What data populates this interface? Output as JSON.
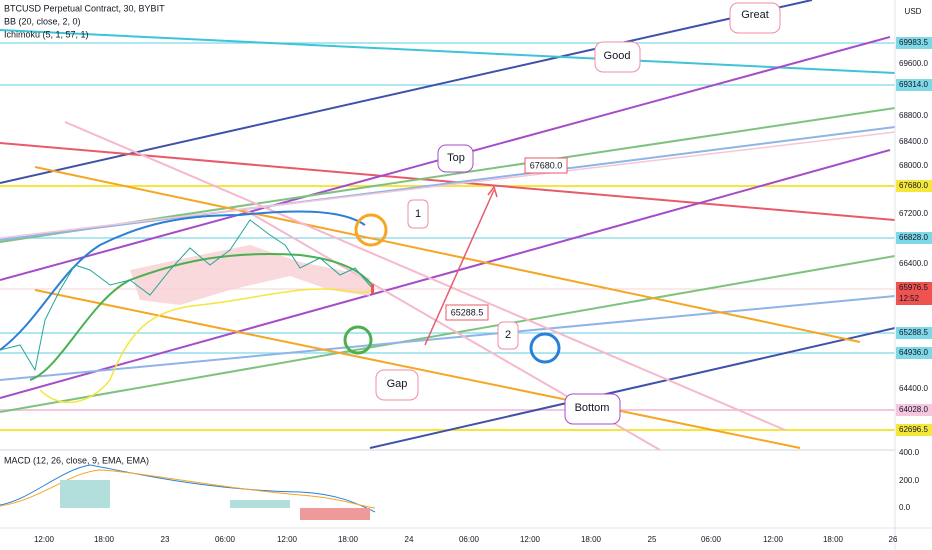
{
  "legend": {
    "symbol": "BTCUSD Perpetual Contract, 30, BYBIT",
    "bb": "BB (20, close, 2, 0)",
    "ichimoku": "Ichimoku (5, 1, 57, 1)",
    "macd": "MACD (12, 26, close, 9, EMA, EMA)"
  },
  "price_axis": {
    "currency": "USD",
    "labels": [
      "69983.5",
      "69600.0",
      "69314.0",
      "68800.0",
      "68400.0",
      "68000.0",
      "67680.0",
      "67200.0",
      "66828.0",
      "66400.0",
      "65976.5",
      "12:52",
      "65288.5",
      "64936.0",
      "64400.0",
      "64028.0",
      "62696.5"
    ]
  },
  "macd_axis": {
    "labels": [
      "400.0",
      "200.0",
      "0.0"
    ]
  },
  "time_axis": {
    "labels": [
      "12:00",
      "18:00",
      "23",
      "06:00",
      "12:00",
      "18:00",
      "24",
      "06:00",
      "12:00",
      "18:00",
      "25",
      "06:00",
      "12:00",
      "18:00",
      "26"
    ]
  },
  "annotations": {
    "great": "Great",
    "good": "Good",
    "top": "Top",
    "top_price": "67680.0",
    "one": "1",
    "low_price": "65288.5",
    "two": "2",
    "gap": "Gap",
    "bottom": "Bottom"
  }
}
